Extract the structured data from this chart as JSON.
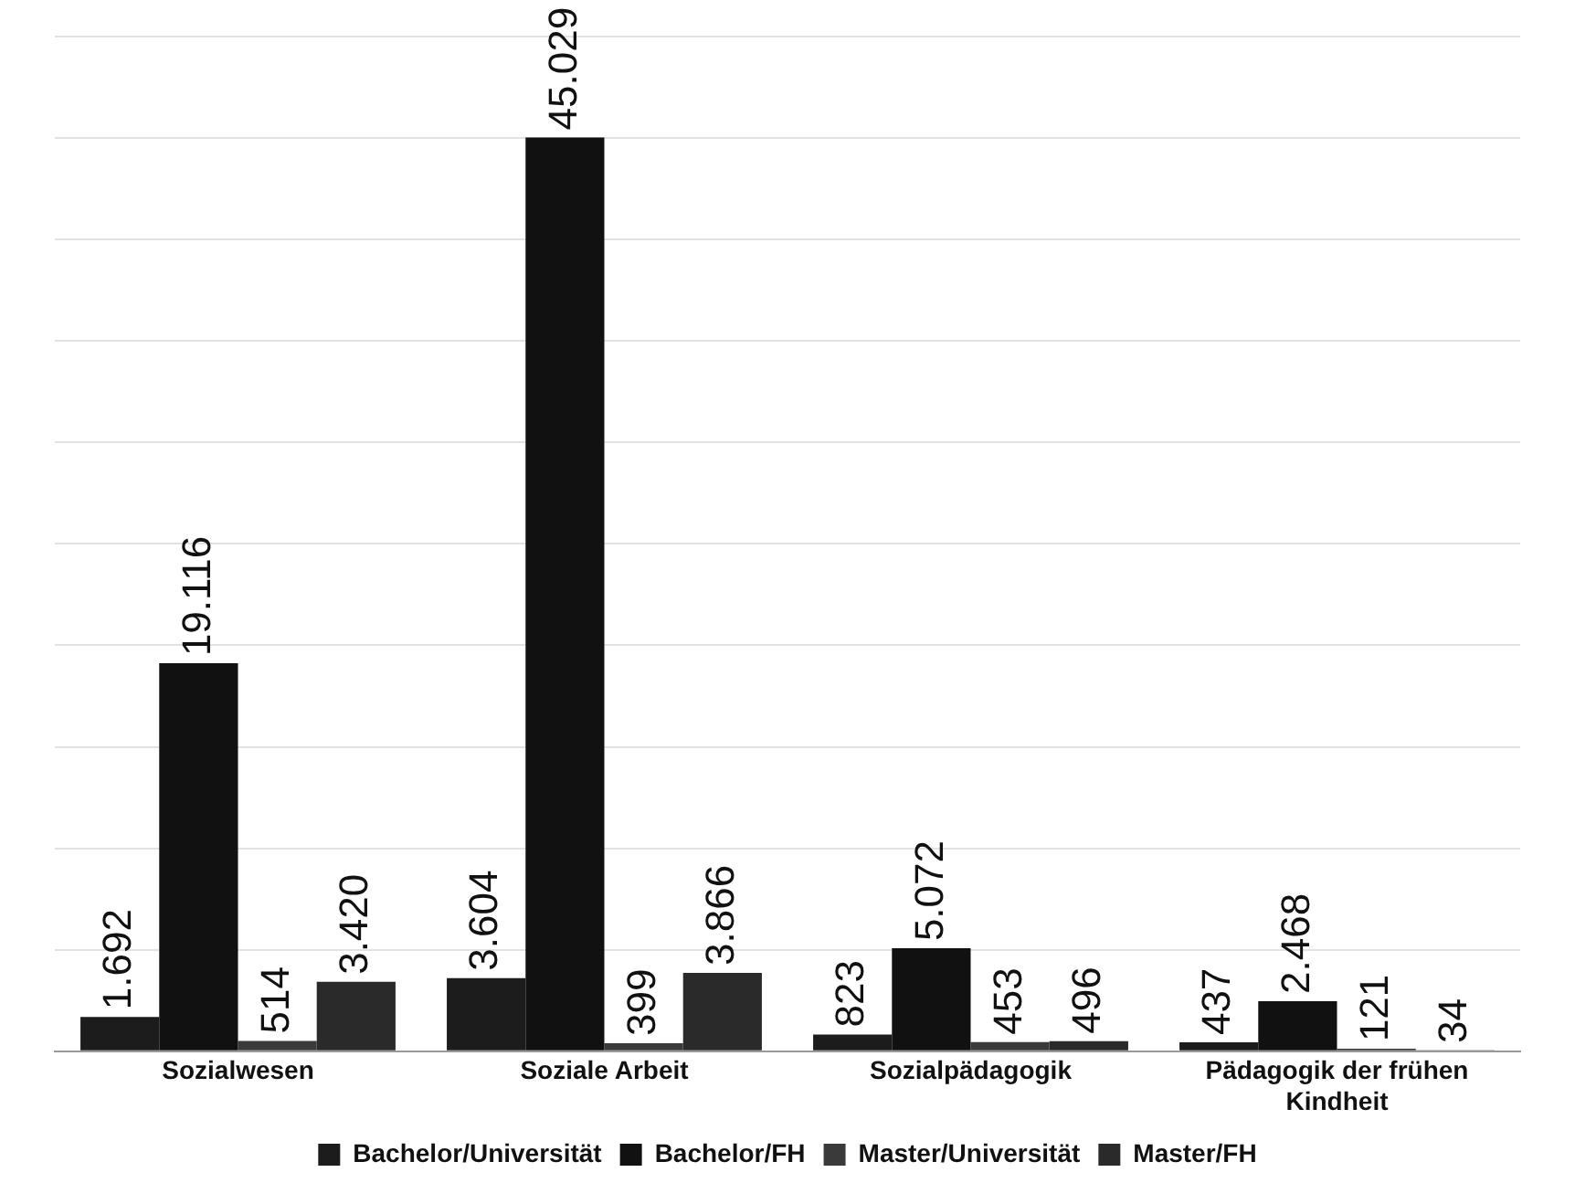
{
  "chart_data": {
    "type": "bar",
    "categories": [
      "Sozialwesen",
      "Soziale Arbeit",
      "Sozialpädagogik",
      "Pädagogik der frühen Kindheit"
    ],
    "series": [
      {
        "name": "Bachelor/Universität",
        "color": "#1c1c1c",
        "values": [
          1692,
          3604,
          823,
          437
        ],
        "value_labels": [
          "1.692",
          "3.604",
          "823",
          "437"
        ]
      },
      {
        "name": "Bachelor/FH",
        "color": "#111111",
        "values": [
          19116,
          45029,
          5072,
          2468
        ],
        "value_labels": [
          "19.116",
          "45.029",
          "5.072",
          "2.468"
        ]
      },
      {
        "name": "Master/Universität",
        "color": "#3a3a3a",
        "values": [
          514,
          399,
          453,
          121
        ],
        "value_labels": [
          "514",
          "399",
          "453",
          "121"
        ]
      },
      {
        "name": "Master/FH",
        "color": "#2a2a2a",
        "values": [
          3420,
          3866,
          496,
          34
        ],
        "value_labels": [
          "3.420",
          "3.866",
          "496",
          "34"
        ]
      }
    ],
    "ylim": [
      0,
      50000
    ],
    "yticks": [
      {
        "value": 0,
        "label": null
      },
      {
        "value": 5000,
        "label": null
      },
      {
        "value": 10000,
        "label": null
      },
      {
        "value": 15000,
        "label": null
      },
      {
        "value": 20000,
        "label": null
      },
      {
        "value": 25000,
        "label": null
      },
      {
        "value": 30000,
        "label": null
      },
      {
        "value": 35000,
        "label": null
      },
      {
        "value": 40000,
        "label": null
      },
      {
        "value": 45000,
        "label": null
      },
      {
        "value": 50000,
        "label": null
      }
    ],
    "tick_labels": "x",
    "grid": "y",
    "legend": "bottom"
  }
}
